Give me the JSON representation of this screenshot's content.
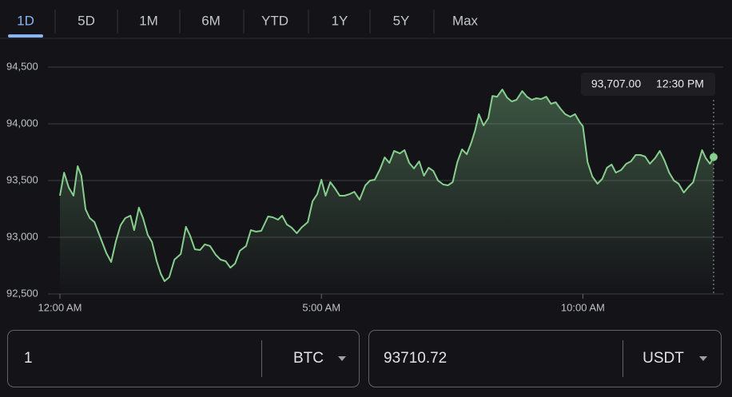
{
  "tabs": [
    "1D",
    "5D",
    "1M",
    "6M",
    "YTD",
    "1Y",
    "5Y",
    "Max"
  ],
  "chart_data": {
    "type": "line",
    "x": [
      0,
      0.08,
      0.17,
      0.26,
      0.34,
      0.41,
      0.49,
      0.57,
      0.66,
      0.76,
      0.89,
      0.98,
      1.07,
      1.16,
      1.25,
      1.35,
      1.42,
      1.51,
      1.59,
      1.68,
      1.76,
      1.85,
      1.93,
      2.0,
      2.09,
      2.19,
      2.31,
      2.41,
      2.49,
      2.58,
      2.68,
      2.77,
      2.87,
      2.98,
      3.07,
      3.17,
      3.26,
      3.35,
      3.44,
      3.56,
      3.65,
      3.75,
      3.85,
      3.98,
      4.07,
      4.17,
      4.25,
      4.34,
      4.43,
      4.53,
      4.62,
      4.74,
      4.83,
      4.92,
      5.0,
      5.08,
      5.17,
      5.26,
      5.35,
      5.44,
      5.54,
      5.63,
      5.73,
      5.84,
      5.93,
      6.02,
      6.12,
      6.21,
      6.3,
      6.39,
      6.5,
      6.59,
      6.68,
      6.77,
      6.87,
      6.96,
      7.05,
      7.14,
      7.23,
      7.33,
      7.42,
      7.51,
      7.6,
      7.69,
      7.78,
      7.87,
      7.94,
      8.01,
      8.1,
      8.19,
      8.27,
      8.36,
      8.46,
      8.55,
      8.64,
      8.73,
      8.84,
      8.93,
      9.02,
      9.11,
      9.2,
      9.3,
      9.39,
      9.48,
      9.57,
      9.66,
      9.76,
      9.85,
      9.94,
      10.0,
      10.09,
      10.18,
      10.28,
      10.37,
      10.46,
      10.55,
      10.63,
      10.73,
      10.83,
      10.92,
      11.01,
      11.1,
      11.19,
      11.28,
      11.38,
      11.47,
      11.56,
      11.65,
      11.74,
      11.83,
      11.93,
      12.02,
      12.11,
      12.2,
      12.28,
      12.35,
      12.43,
      12.5
    ],
    "values": [
      93366,
      93570,
      93437,
      93366,
      93627,
      93542,
      93246,
      93169,
      93134,
      93014,
      92859,
      92782,
      92965,
      93106,
      93169,
      93190,
      93063,
      93261,
      93169,
      93021,
      92958,
      92789,
      92676,
      92613,
      92648,
      92803,
      92852,
      93092,
      93014,
      92894,
      92887,
      92937,
      92923,
      92845,
      92803,
      92789,
      92732,
      92768,
      92880,
      92923,
      93063,
      93049,
      93056,
      93183,
      93176,
      93155,
      93190,
      93113,
      93085,
      93035,
      93085,
      93134,
      93317,
      93380,
      93507,
      93366,
      93486,
      93430,
      93366,
      93366,
      93380,
      93401,
      93331,
      93458,
      93500,
      93507,
      93599,
      93704,
      93655,
      93761,
      93739,
      93768,
      93655,
      93606,
      93669,
      93542,
      93613,
      93585,
      93500,
      93465,
      93458,
      93486,
      93662,
      93775,
      93732,
      93838,
      93944,
      94085,
      93986,
      94049,
      94246,
      94239,
      94303,
      94232,
      94197,
      94211,
      94289,
      94239,
      94211,
      94225,
      94218,
      94239,
      94176,
      94190,
      94134,
      94085,
      94063,
      94085,
      94014,
      93979,
      93662,
      93535,
      93472,
      93514,
      93613,
      93641,
      93570,
      93592,
      93648,
      93669,
      93725,
      93725,
      93711,
      93648,
      93697,
      93761,
      93676,
      93570,
      93500,
      93472,
      93394,
      93444,
      93486,
      93641,
      93768,
      93697,
      93648,
      93707
    ],
    "color": "#87cf8e",
    "xlim": [
      0,
      12.5
    ],
    "xticks": [
      {
        "value": 0,
        "label": "12:00 AM"
      },
      {
        "value": 5,
        "label": "5:00 AM"
      },
      {
        "value": 10,
        "label": "10:00 AM"
      }
    ],
    "ylim": [
      92500,
      94500
    ],
    "yticks": [
      {
        "value": 92500,
        "label": "92,500"
      },
      {
        "value": 93000,
        "label": "93,000"
      },
      {
        "value": 93500,
        "label": "93,500"
      },
      {
        "value": 94000,
        "label": "94,000"
      },
      {
        "value": 94500,
        "label": "94,500"
      }
    ],
    "grid": true,
    "tooltip": {
      "value_label": "93,707.00",
      "x_label": "12:30 PM"
    }
  },
  "converter": {
    "from_amount": "1",
    "from_currency": "BTC",
    "to_amount": "93710.72",
    "to_currency": "USDT"
  }
}
